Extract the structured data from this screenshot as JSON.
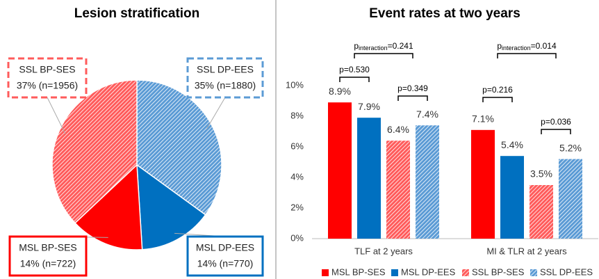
{
  "chart_data": [
    {
      "type": "pie",
      "title": "Lesion stratification",
      "categories": [
        "SSL DP-EES",
        "MSL DP-EES",
        "MSL BP-SES",
        "SSL BP-SES"
      ],
      "values": [
        35,
        14,
        14,
        37
      ],
      "value_labels": [
        "35% (n=1880)",
        "14% (n=770)",
        "14% (n=722)",
        "37% (n=1956)"
      ],
      "colors": [
        "#5b9bd5",
        "#0070c0",
        "#ff0000",
        "#ff5b5b"
      ],
      "patterns": [
        "hatched",
        "solid",
        "solid",
        "hatched"
      ]
    },
    {
      "type": "bar",
      "title": "Event rates at two years",
      "categories": [
        "TLF at 2 years",
        "MI & TLR at 2 years"
      ],
      "series": [
        {
          "name": "MSL BP-SES",
          "color": "#ff0000",
          "pattern": "solid",
          "values": [
            8.9,
            7.1
          ],
          "value_labels": [
            "8.9%",
            "7.1%"
          ]
        },
        {
          "name": "MSL DP-EES",
          "color": "#0070c0",
          "pattern": "solid",
          "values": [
            7.9,
            5.4
          ],
          "value_labels": [
            "7.9%",
            "5.4%"
          ]
        },
        {
          "name": "SSL BP-SES",
          "color": "#ff5b5b",
          "pattern": "hatched",
          "values": [
            6.4,
            3.5
          ],
          "value_labels": [
            "6.4%",
            "3.5%"
          ]
        },
        {
          "name": "SSL DP-EES",
          "color": "#5b9bd5",
          "pattern": "hatched",
          "values": [
            7.4,
            5.2
          ],
          "value_labels": [
            "7.4%",
            "5.2%"
          ]
        }
      ],
      "ylim": [
        0,
        10
      ],
      "yticks": [
        {
          "value": 0,
          "label": "0%"
        },
        {
          "value": 2,
          "label": "2%"
        },
        {
          "value": 4,
          "label": "4%"
        },
        {
          "value": 6,
          "label": "6%"
        },
        {
          "value": 8,
          "label": "8%"
        },
        {
          "value": 10,
          "label": "10%"
        }
      ],
      "grid": false,
      "legend": "bottom",
      "annotations": [
        {
          "prefix": "p",
          "subscript": "interaction",
          "suffix": "=0.241"
        },
        {
          "text": "p=0.530"
        },
        {
          "text": "p=0.349"
        },
        {
          "prefix": "p",
          "subscript": "interaction",
          "suffix": "=0.014"
        },
        {
          "text": "p=0.216"
        },
        {
          "text": "p=0.036"
        }
      ]
    }
  ]
}
